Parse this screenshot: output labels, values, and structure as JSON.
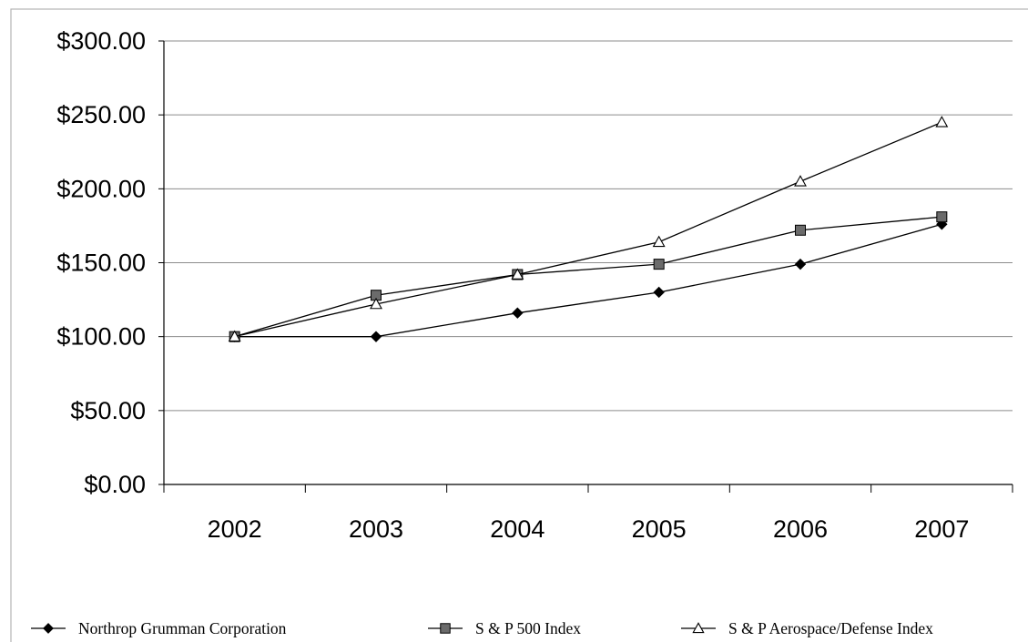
{
  "chart_data": {
    "type": "line",
    "title": "",
    "xlabel": "",
    "ylabel": "",
    "categories": [
      "2002",
      "2003",
      "2004",
      "2005",
      "2006",
      "2007"
    ],
    "ylim": [
      0,
      300
    ],
    "y_ticks": [
      0,
      50,
      100,
      150,
      200,
      250,
      300
    ],
    "y_tick_labels": [
      "$0.00",
      "$50.00",
      "$100.00",
      "$150.00",
      "$200.00",
      "$250.00",
      "$300.00"
    ],
    "grid": "horizontal",
    "legend_position": "bottom",
    "series": [
      {
        "name": "Northrop Grumman Corporation",
        "marker": "diamond",
        "color": "#000000",
        "values": [
          100,
          100,
          116,
          130,
          149,
          176
        ]
      },
      {
        "name": "S & P 500 Index",
        "marker": "square",
        "color": "#666666",
        "values": [
          100,
          128,
          142,
          149,
          172,
          181
        ]
      },
      {
        "name": "S & P Aerospace/Defense Index",
        "marker": "triangle",
        "color": "#ffffff",
        "values": [
          100,
          122,
          142,
          164,
          205,
          245
        ]
      }
    ]
  }
}
